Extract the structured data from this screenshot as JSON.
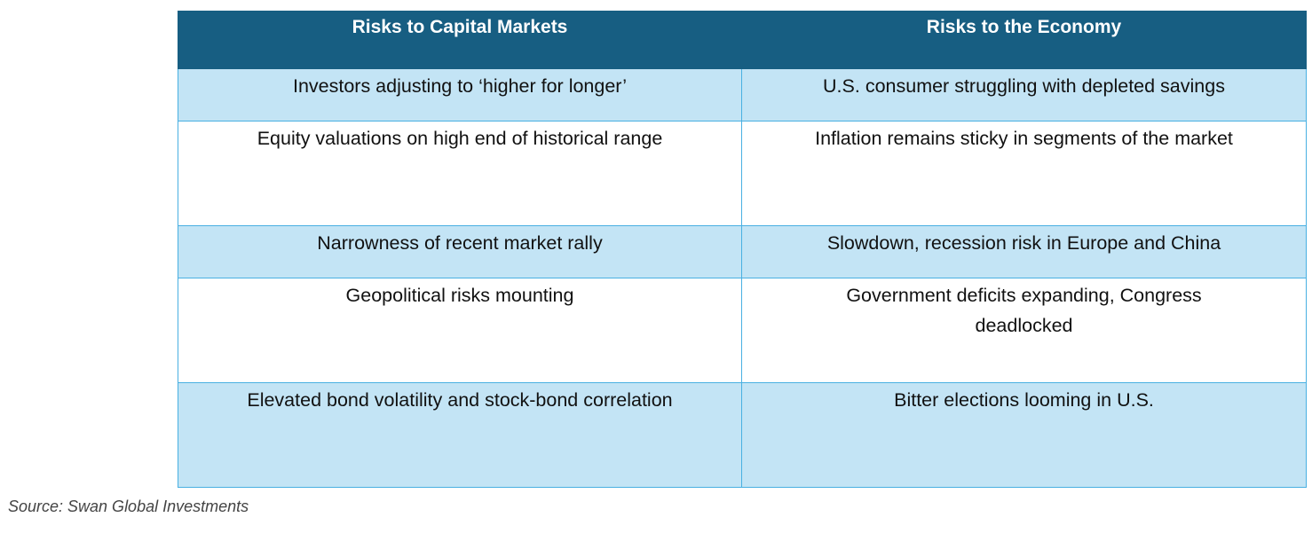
{
  "table": {
    "headers": [
      "Risks to Capital Markets",
      "Risks to the Economy"
    ],
    "rows": [
      [
        "Investors adjusting to ‘higher for longer’",
        "U.S. consumer struggling with depleted savings"
      ],
      [
        "Equity valuations on high end of historical range",
        "Inflation remains sticky in segments of the market"
      ],
      [
        "Narrowness of recent market rally",
        "Slowdown, recession risk in Europe and China"
      ],
      [
        "Geopolitical risks mounting",
        "Government deficits expanding, Congress deadlocked"
      ],
      [
        "Elevated bond volatility and stock-bond correlation",
        "Bitter elections looming in U.S."
      ]
    ],
    "colors": {
      "header_bg": "#175e82",
      "header_text": "#ffffff",
      "shaded_row_bg": "#c3e4f5",
      "border": "#49b0e2"
    }
  },
  "source": "Source: Swan Global Investments"
}
